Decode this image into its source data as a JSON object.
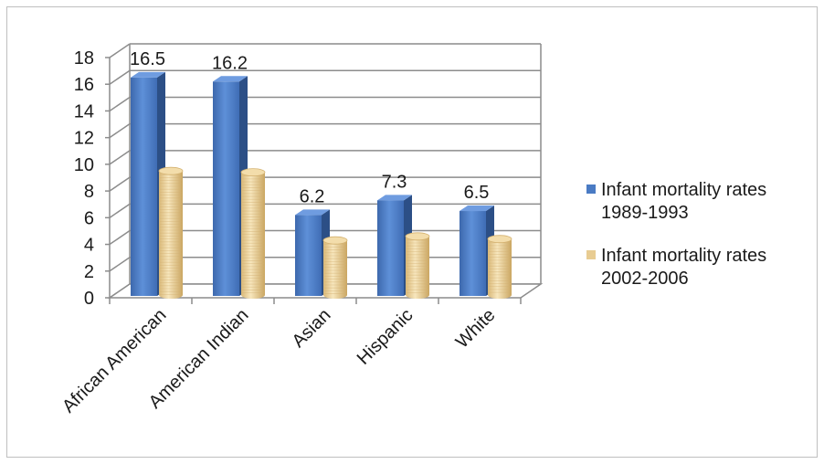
{
  "chart_data": {
    "type": "bar",
    "title": "",
    "xlabel": "",
    "ylabel": "",
    "categories": [
      "African American",
      "American Indian",
      "Asian",
      "Hispanic",
      "White"
    ],
    "ylim": [
      0,
      18
    ],
    "yticks": [
      0,
      2,
      4,
      6,
      8,
      10,
      12,
      14,
      16,
      18
    ],
    "grid": true,
    "legend_position": "right",
    "series": [
      {
        "name": "Infant mortality rates 1989-1993",
        "values": [
          16.5,
          16.2,
          6.2,
          7.3,
          6.5
        ],
        "data_labels": [
          "16.5",
          "16.2",
          "6.2",
          "7.3",
          "6.5"
        ],
        "color": "#4a7bc4",
        "shape": "box"
      },
      {
        "name": "Infant mortality rates 2002-2006",
        "values": [
          9.5,
          9.4,
          4.3,
          4.6,
          4.4
        ],
        "color": "#e8cc92",
        "shape": "cylinder"
      }
    ]
  }
}
